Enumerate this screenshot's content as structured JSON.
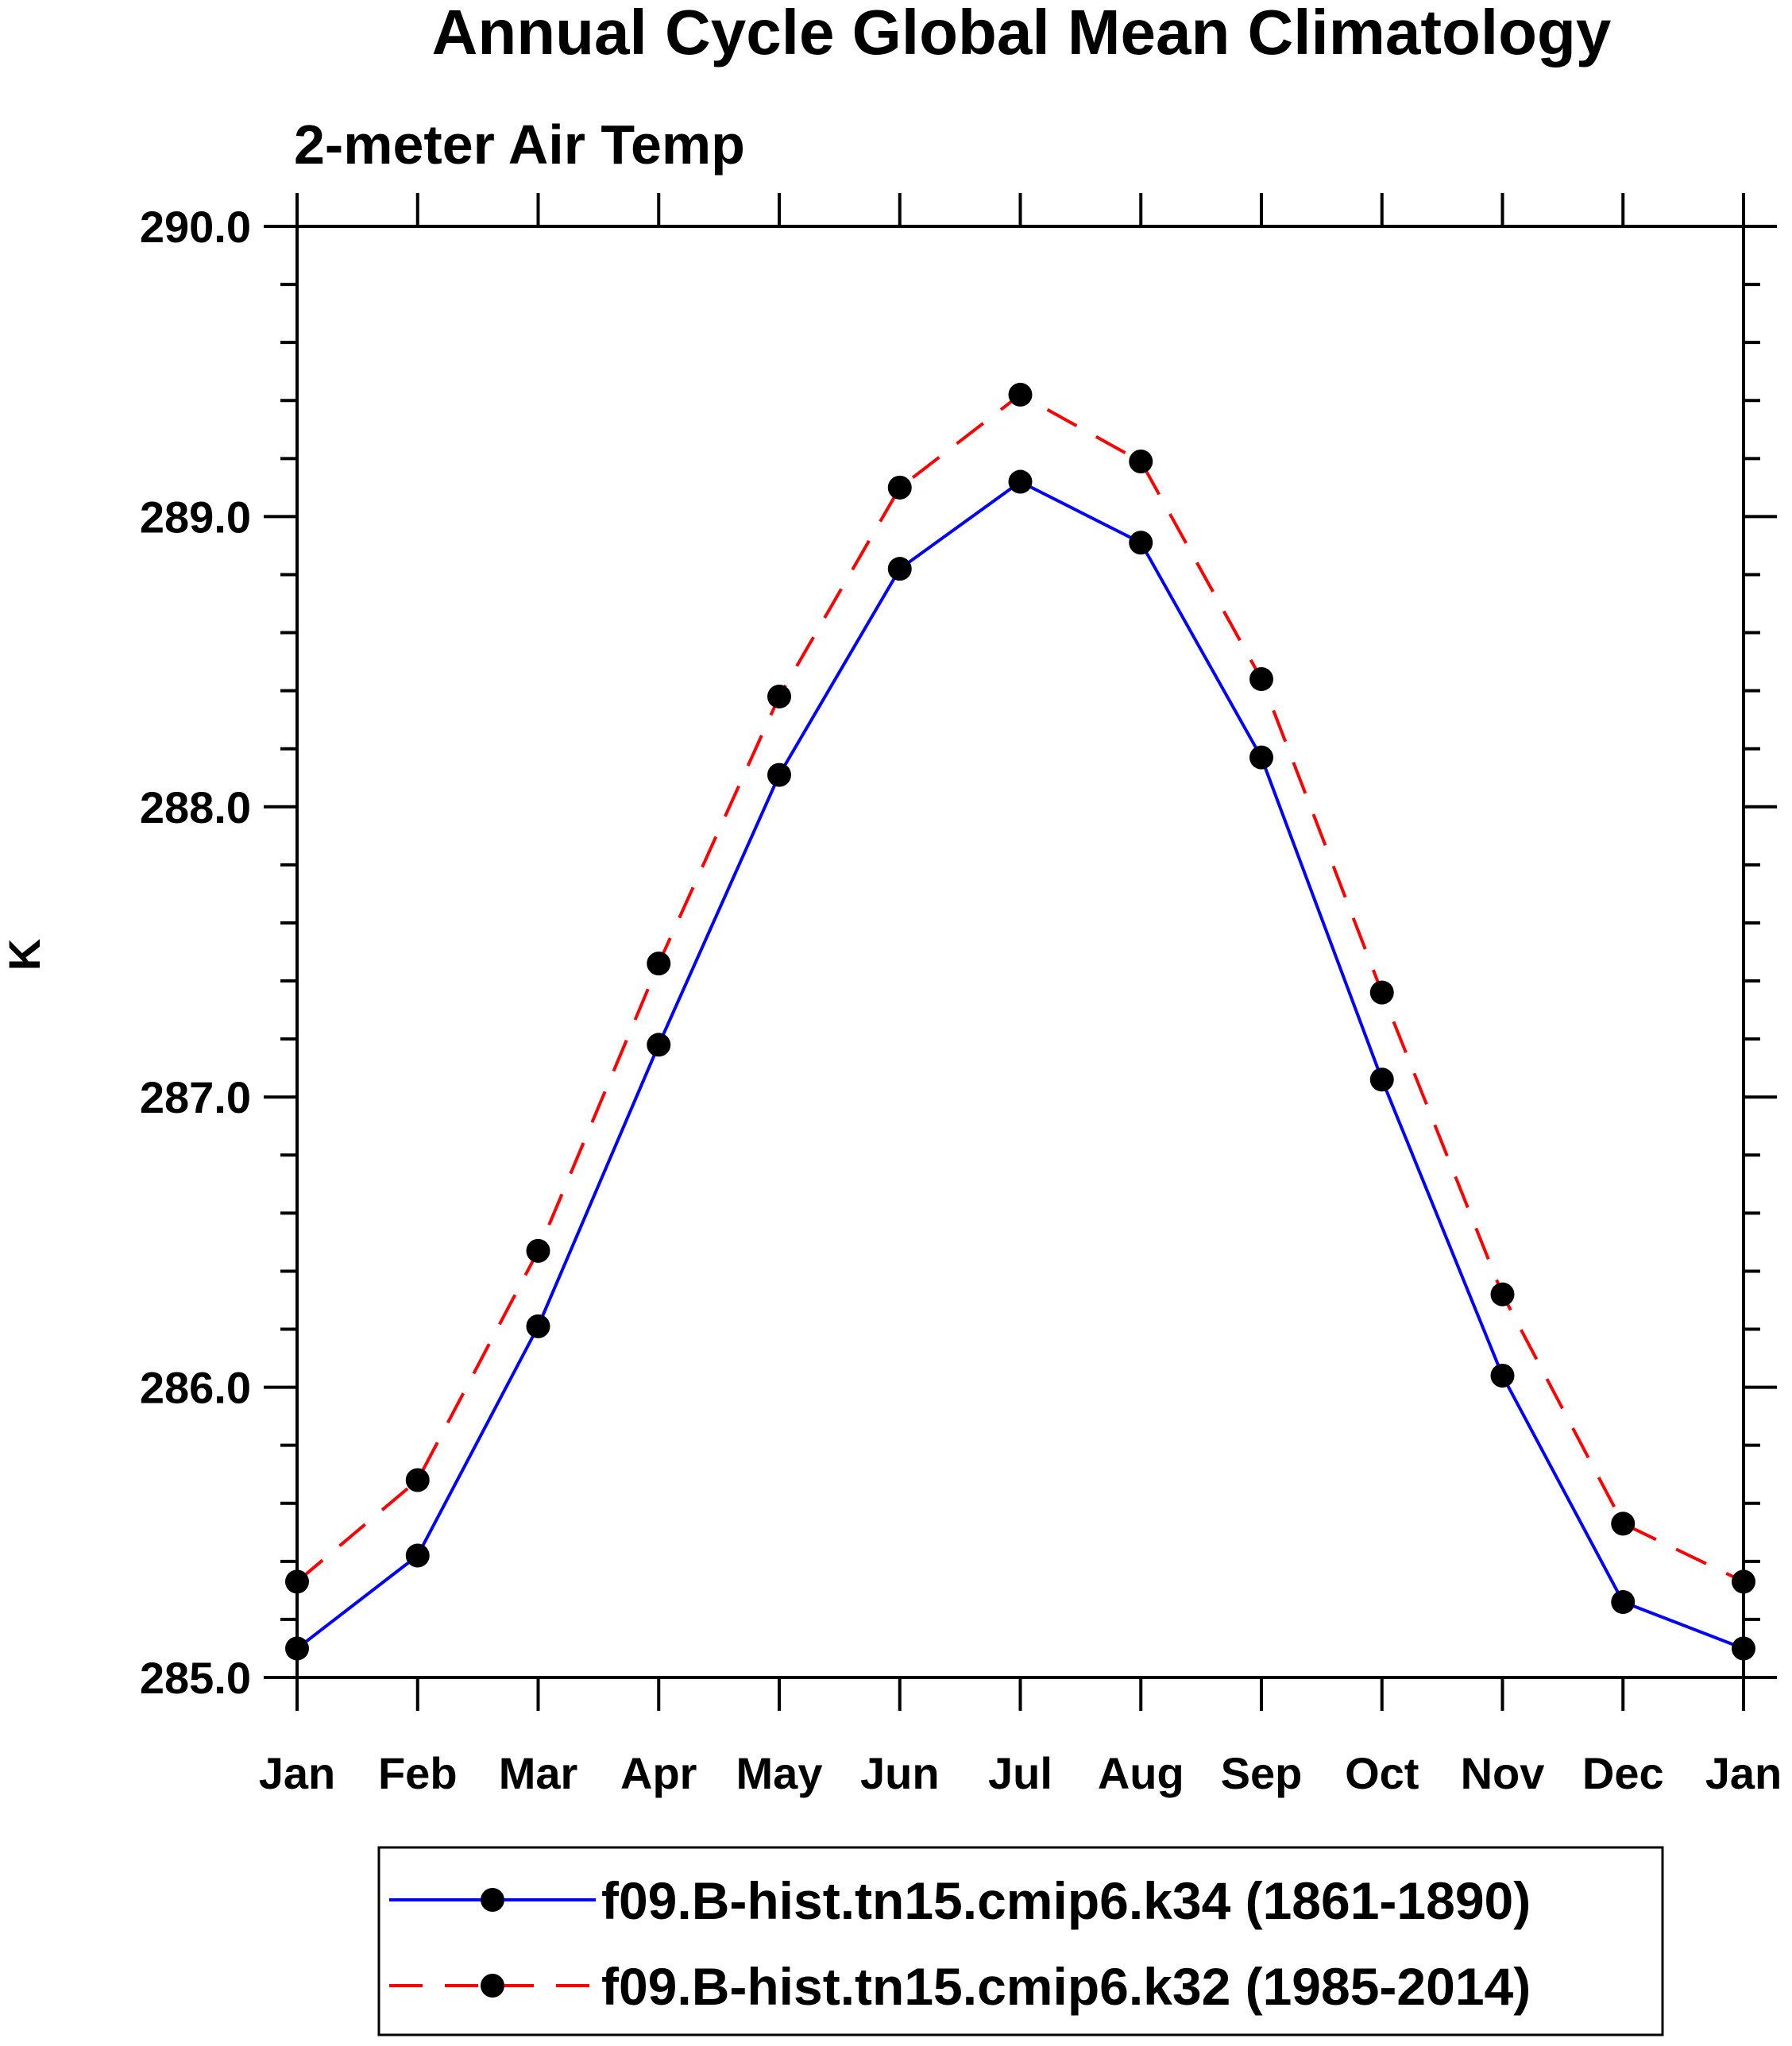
{
  "chart_data": {
    "type": "line",
    "title": "Annual Cycle Global Mean Climatology",
    "subtitle": "2-meter Air Temp",
    "xlabel": "",
    "ylabel": "K",
    "categories": [
      "Jan",
      "Feb",
      "Mar",
      "Apr",
      "May",
      "Jun",
      "Jul",
      "Aug",
      "Sep",
      "Oct",
      "Nov",
      "Dec",
      "Jan"
    ],
    "ylim": [
      285.0,
      290.0
    ],
    "y_ticks": [
      "285.0",
      "286.0",
      "287.0",
      "288.0",
      "289.0",
      "290.0"
    ],
    "y_minor_step": 0.2,
    "grid": false,
    "legend_position": "bottom-center",
    "series": [
      {
        "name": "f09.B-hist.tn15.cmip6.k34 (1861-1890)",
        "color": "#0000ff",
        "dash": "solid",
        "marker": "filled-circle",
        "values": [
          285.1,
          285.42,
          286.21,
          287.18,
          288.11,
          288.82,
          289.12,
          288.91,
          288.17,
          287.06,
          286.04,
          285.26,
          285.1
        ]
      },
      {
        "name": "f09.B-hist.tn15.cmip6.k32 (1985-2014)",
        "color": "#ff0000",
        "dash": "dashed",
        "marker": "filled-circle",
        "values": [
          285.33,
          285.68,
          286.47,
          287.46,
          288.38,
          289.1,
          289.42,
          289.19,
          288.44,
          287.36,
          286.32,
          285.53,
          285.33
        ]
      }
    ]
  }
}
